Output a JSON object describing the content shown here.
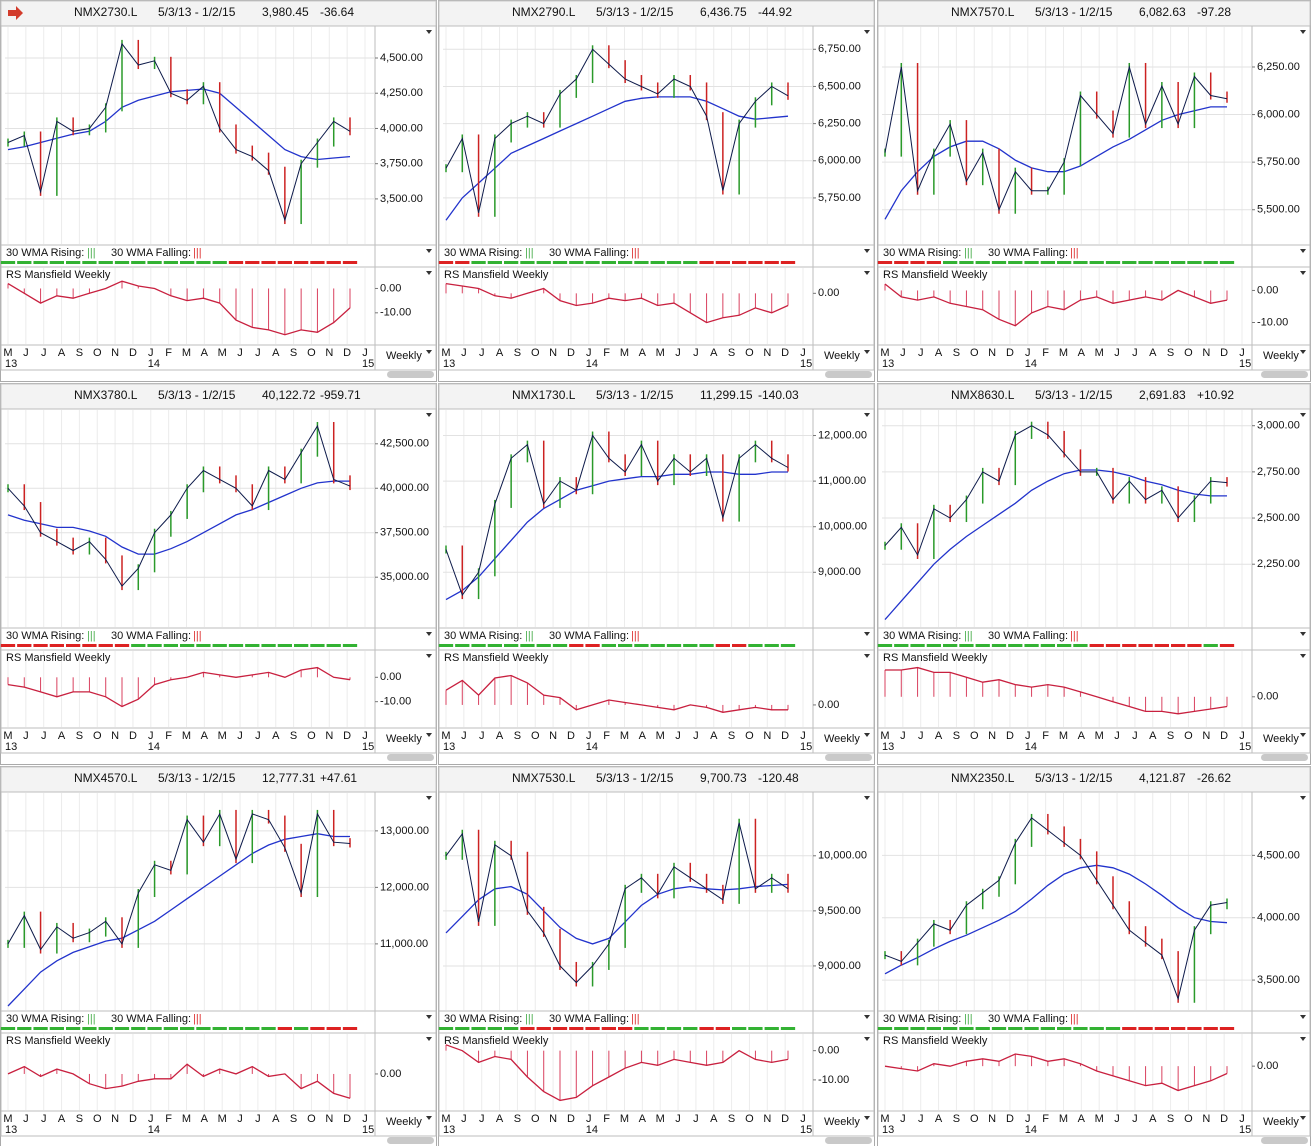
{
  "common": {
    "wma_rising_label": "30 WMA Rising:",
    "wma_falling_label": "30 WMA Falling:",
    "rising_symbol": "|||",
    "falling_symbol": "|||",
    "rs_title": "RS Mansfield Weekly",
    "period": "Weekly",
    "months": [
      "M",
      "J",
      "J",
      "A",
      "S",
      "O",
      "N",
      "D",
      "J",
      "F",
      "M",
      "A",
      "M",
      "J",
      "J",
      "A",
      "S",
      "O",
      "N",
      "D",
      "J"
    ],
    "years": [
      "13",
      "14",
      "15"
    ]
  },
  "chart_data": [
    {
      "type": "line",
      "title": "NMX2730.L",
      "date_range": "5/3/13 - 1/2/15",
      "last": "3,980.45",
      "change": "-36.64",
      "ylim": [
        3180,
        4720
      ],
      "yticks": [
        {
          "value": 3500,
          "label": "3,500.00"
        },
        {
          "value": 3750,
          "label": "3,750.00"
        },
        {
          "value": 4000,
          "label": "4,000.00"
        },
        {
          "value": 4250,
          "label": "4,250.00"
        },
        {
          "value": 4500,
          "label": "4,500.00"
        }
      ],
      "values": [
        3900,
        3950,
        3550,
        4050,
        3980,
        4000,
        4150,
        4600,
        4450,
        4480,
        4250,
        4200,
        4300,
        4000,
        3850,
        3800,
        3700,
        3350,
        3750,
        3900,
        4050,
        3980
      ],
      "ma": [
        3850,
        3870,
        3900,
        3930,
        3960,
        3980,
        4050,
        4150,
        4200,
        4230,
        4260,
        4270,
        4280,
        4250,
        4150,
        4050,
        3950,
        3850,
        3800,
        3780,
        3790,
        3800
      ],
      "trend": [
        1,
        1,
        1,
        1,
        1,
        1,
        1,
        1,
        1,
        1,
        1,
        1,
        1,
        1,
        0,
        0,
        0,
        0,
        0,
        0,
        0,
        0
      ],
      "rs": {
        "ylim": [
          -22.8,
          8.4
        ],
        "yticks": [
          {
            "value": 0,
            "label": "0.00"
          },
          {
            "value": -10,
            "label": "-10.00"
          }
        ],
        "values": [
          2,
          -2,
          -6,
          -3,
          -4,
          -2,
          0,
          3,
          1,
          0,
          -3,
          -5,
          -4,
          -6,
          -13,
          -16,
          -17,
          -19,
          -17,
          -18,
          -14,
          -8
        ]
      }
    },
    {
      "type": "line",
      "title": "NMX2790.L",
      "date_range": "5/3/13 - 1/2/15",
      "last": "6,436.75",
      "change": "-44.92",
      "ylim": [
        5440,
        6900
      ],
      "yticks": [
        {
          "value": 5750,
          "label": "5,750.00"
        },
        {
          "value": 6000,
          "label": "6,000.00"
        },
        {
          "value": 6250,
          "label": "6,250.00"
        },
        {
          "value": 6500,
          "label": "6,500.00"
        },
        {
          "value": 6750,
          "label": "6,750.00"
        }
      ],
      "values": [
        5950,
        6150,
        5650,
        6150,
        6250,
        6300,
        6250,
        6450,
        6550,
        6750,
        6650,
        6550,
        6500,
        6450,
        6550,
        6500,
        6300,
        5800,
        6250,
        6400,
        6500,
        6437
      ],
      "ma": [
        5600,
        5750,
        5850,
        5950,
        6050,
        6100,
        6150,
        6200,
        6250,
        6300,
        6350,
        6400,
        6420,
        6430,
        6430,
        6430,
        6400,
        6350,
        6300,
        6280,
        6290,
        6300
      ],
      "trend": [
        0,
        0,
        1,
        1,
        1,
        1,
        1,
        1,
        1,
        1,
        1,
        1,
        1,
        1,
        1,
        1,
        0,
        0,
        0,
        0,
        0,
        0
      ],
      "rs": {
        "ylim": [
          -20.8,
          10.4
        ],
        "yticks": [
          {
            "value": 0,
            "label": "0.00"
          }
        ],
        "values": [
          4,
          3,
          2,
          -1,
          -2,
          0,
          2,
          -3,
          -5,
          -4,
          -2,
          -3,
          -2,
          -5,
          -4,
          -8,
          -12,
          -10,
          -9,
          -6,
          -8,
          -5
        ]
      }
    },
    {
      "type": "line",
      "title": "NMX7570.L",
      "date_range": "5/3/13 - 1/2/15",
      "last": "6,082.63",
      "change": "-97.28",
      "ylim": [
        5320,
        6460
      ],
      "yticks": [
        {
          "value": 5500,
          "label": "5,500.00"
        },
        {
          "value": 5750,
          "label": "5,750.00"
        },
        {
          "value": 6000,
          "label": "6,000.00"
        },
        {
          "value": 6250,
          "label": "6,250.00"
        }
      ],
      "values": [
        5800,
        6250,
        5600,
        5800,
        5950,
        5650,
        5800,
        5500,
        5700,
        5600,
        5600,
        5750,
        6100,
        6000,
        5900,
        6250,
        5950,
        6150,
        5950,
        6200,
        6100,
        6083
      ],
      "ma": [
        5450,
        5600,
        5700,
        5780,
        5830,
        5860,
        5860,
        5820,
        5760,
        5720,
        5700,
        5700,
        5730,
        5780,
        5830,
        5870,
        5920,
        5970,
        6000,
        6020,
        6040,
        6040
      ],
      "trend": [
        0,
        0,
        0,
        0,
        1,
        1,
        1,
        1,
        1,
        1,
        1,
        1,
        1,
        1,
        1,
        1,
        1,
        1,
        1,
        1,
        1,
        1
      ],
      "rs": {
        "ylim": [
          -16.7,
          7
        ],
        "yticks": [
          {
            "value": 0,
            "label": "0.00"
          },
          {
            "value": -10,
            "label": "-10.00"
          }
        ],
        "values": [
          2,
          -2,
          -3,
          -2,
          -4,
          -5,
          -6,
          -9,
          -11,
          -7,
          -5,
          -6,
          -3,
          -2,
          -4,
          -3,
          -2,
          -3,
          0,
          -2,
          -4,
          -3
        ]
      }
    },
    {
      "type": "line",
      "title": "NMX3780.L",
      "date_range": "5/3/13 - 1/2/15",
      "last": "40,122.72",
      "change": "-959.71",
      "ylim": [
        32200,
        44400
      ],
      "yticks": [
        {
          "value": 35000,
          "label": "35,000.00"
        },
        {
          "value": 37500,
          "label": "37,500.00"
        },
        {
          "value": 40000,
          "label": "40,000.00"
        },
        {
          "value": 42500,
          "label": "42,500.00"
        }
      ],
      "values": [
        40000,
        39000,
        37500,
        37000,
        36500,
        37000,
        36000,
        34500,
        35500,
        37500,
        38500,
        40000,
        41000,
        40500,
        40000,
        39000,
        41000,
        40500,
        42000,
        43500,
        40500,
        40123
      ],
      "ma": [
        38500,
        38200,
        38000,
        37800,
        37800,
        37600,
        37300,
        36700,
        36300,
        36300,
        36600,
        37000,
        37500,
        38000,
        38500,
        38800,
        39200,
        39600,
        40000,
        40300,
        40400,
        40400
      ],
      "trend": [
        0,
        0,
        0,
        0,
        0,
        0,
        0,
        0,
        1,
        1,
        1,
        1,
        1,
        1,
        1,
        1,
        1,
        1,
        1,
        1,
        1,
        1
      ],
      "rs": {
        "ylim": [
          -20.4,
          10.8
        ],
        "yticks": [
          {
            "value": 0,
            "label": "0.00"
          },
          {
            "value": -10,
            "label": "-10.00"
          }
        ],
        "values": [
          -3,
          -4,
          -6,
          -8,
          -6,
          -6,
          -8,
          -12,
          -9,
          -3,
          -1,
          0,
          2,
          1,
          0,
          1,
          2,
          0,
          3,
          4,
          0,
          -1
        ]
      }
    },
    {
      "type": "line",
      "title": "NMX1730.L",
      "date_range": "5/3/13 - 1/2/15",
      "last": "11,299.15",
      "change": "-140.03",
      "ylim": [
        7800,
        12560
      ],
      "yticks": [
        {
          "value": 9000,
          "label": "9,000.00"
        },
        {
          "value": 10000,
          "label": "10,000.00"
        },
        {
          "value": 11000,
          "label": "11,000.00"
        },
        {
          "value": 12000,
          "label": "12,000.00"
        }
      ],
      "values": [
        9500,
        8500,
        9000,
        10500,
        11500,
        11800,
        10500,
        11000,
        10800,
        12000,
        11500,
        11200,
        11800,
        11000,
        11500,
        11200,
        11500,
        10200,
        11500,
        11800,
        11500,
        11299
      ],
      "ma": [
        8400,
        8600,
        8900,
        9300,
        9700,
        10100,
        10400,
        10600,
        10800,
        10900,
        11000,
        11050,
        11100,
        11100,
        11150,
        11150,
        11200,
        11200,
        11150,
        11150,
        11200,
        11200
      ],
      "trend": [
        1,
        1,
        1,
        1,
        1,
        1,
        1,
        1,
        0,
        0,
        1,
        1,
        1,
        1,
        1,
        1,
        1,
        0,
        0,
        1,
        1,
        1
      ],
      "rs": {
        "ylim": [
          -9,
          22
        ],
        "yticks": [
          {
            "value": 0,
            "label": "0.00"
          }
        ],
        "values": [
          6,
          10,
          4,
          11,
          12,
          9,
          4,
          3,
          -2,
          0,
          2,
          1,
          0,
          -1,
          -2,
          0,
          -1,
          -3,
          -2,
          -1,
          -2,
          -2
        ]
      }
    },
    {
      "type": "line",
      "title": "NMX8630.L",
      "date_range": "5/3/13 - 1/2/15",
      "last": "2,691.83",
      "change": "+10.92",
      "ylim": [
        1910,
        3085
      ],
      "yticks": [
        {
          "value": 2250,
          "label": "2,250.00"
        },
        {
          "value": 2500,
          "label": "2,500.00"
        },
        {
          "value": 2750,
          "label": "2,750.00"
        },
        {
          "value": 3000,
          "label": "3,000.00"
        }
      ],
      "values": [
        2350,
        2450,
        2300,
        2550,
        2500,
        2600,
        2750,
        2700,
        2950,
        3000,
        2950,
        2850,
        2750,
        2750,
        2600,
        2700,
        2600,
        2650,
        2500,
        2600,
        2700,
        2692
      ],
      "ma": [
        1950,
        2050,
        2150,
        2250,
        2330,
        2400,
        2460,
        2520,
        2580,
        2650,
        2700,
        2740,
        2760,
        2760,
        2750,
        2730,
        2700,
        2680,
        2650,
        2630,
        2620,
        2620
      ],
      "trend": [
        1,
        1,
        1,
        1,
        1,
        1,
        1,
        1,
        1,
        1,
        1,
        1,
        1,
        0,
        0,
        0,
        0,
        0,
        0,
        0,
        1,
        0
      ],
      "rs": {
        "ylim": [
          -12.4,
          18.8
        ],
        "yticks": [
          {
            "value": 0,
            "label": "0.00"
          }
        ],
        "values": [
          11,
          11,
          12,
          10,
          10,
          8,
          6,
          7,
          5,
          4,
          5,
          4,
          2,
          0,
          -2,
          -4,
          -6,
          -6,
          -7,
          -6,
          -5,
          -4
        ]
      }
    },
    {
      "type": "line",
      "title": "NMX4570.L",
      "date_range": "5/3/13 - 1/2/15",
      "last": "12,777.31",
      "change": "+47.61",
      "ylim": [
        9830,
        13670
      ],
      "yticks": [
        {
          "value": 11000,
          "label": "11,000.00"
        },
        {
          "value": 12000,
          "label": "12,000.00"
        },
        {
          "value": 13000,
          "label": "13,000.00"
        }
      ],
      "values": [
        11000,
        11500,
        10900,
        11300,
        11100,
        11200,
        11400,
        11000,
        11900,
        12400,
        12300,
        13200,
        12800,
        13300,
        12500,
        13300,
        13200,
        12700,
        11900,
        13300,
        12800,
        12777
      ],
      "ma": [
        9900,
        10200,
        10500,
        10700,
        10850,
        10950,
        11050,
        11100,
        11250,
        11400,
        11600,
        11800,
        12000,
        12200,
        12400,
        12600,
        12750,
        12850,
        12900,
        12950,
        12900,
        12900
      ],
      "trend": [
        1,
        1,
        1,
        1,
        1,
        1,
        1,
        1,
        1,
        1,
        1,
        1,
        1,
        1,
        1,
        1,
        1,
        0,
        1,
        0,
        0,
        0
      ],
      "rs": {
        "ylim": [
          -14.8,
          16.4
        ],
        "yticks": [
          {
            "value": 0,
            "label": "0.00"
          }
        ],
        "values": [
          0,
          3,
          -1,
          2,
          0,
          -4,
          -6,
          -5,
          -3,
          -2,
          -2,
          4,
          -1,
          2,
          0,
          3,
          -1,
          0,
          -6,
          -3,
          -8,
          -10
        ]
      }
    },
    {
      "type": "line",
      "title": "NMX7530.L",
      "date_range": "5/3/13 - 1/2/15",
      "last": "9,700.73",
      "change": "-120.48",
      "ylim": [
        8600,
        10570
      ],
      "yticks": [
        {
          "value": 9000,
          "label": "9,000.00"
        },
        {
          "value": 9500,
          "label": "9,500.00"
        },
        {
          "value": 10000,
          "label": "10,000.00"
        }
      ],
      "values": [
        10000,
        10200,
        9400,
        10100,
        10000,
        9500,
        9300,
        9000,
        8850,
        9000,
        9200,
        9700,
        9800,
        9650,
        9900,
        9800,
        9700,
        9600,
        10300,
        9700,
        9800,
        9701
      ],
      "ma": [
        9300,
        9450,
        9600,
        9700,
        9720,
        9650,
        9500,
        9350,
        9250,
        9200,
        9250,
        9400,
        9550,
        9650,
        9700,
        9720,
        9700,
        9690,
        9700,
        9720,
        9730,
        9740
      ],
      "trend": [
        1,
        1,
        1,
        1,
        1,
        0,
        0,
        0,
        0,
        0,
        0,
        0,
        1,
        1,
        1,
        1,
        0,
        0,
        1,
        1,
        1,
        1
      ],
      "rs": {
        "ylim": [
          -20.3,
          5.7
        ],
        "yticks": [
          {
            "value": 0,
            "label": "0.00"
          },
          {
            "value": -10,
            "label": "-10.00"
          }
        ],
        "values": [
          2,
          0,
          -4,
          -2,
          -3,
          -9,
          -14,
          -17,
          -16,
          -12,
          -9,
          -6,
          -4,
          -5,
          -3,
          -4,
          -5,
          -4,
          0,
          -3,
          -4,
          -3
        ]
      }
    },
    {
      "type": "line",
      "title": "NMX2350.L",
      "date_range": "5/3/13 - 1/2/15",
      "last": "4,121.87",
      "change": "-26.62",
      "ylim": [
        3260,
        5000
      ],
      "yticks": [
        {
          "value": 3500,
          "label": "3,500.00"
        },
        {
          "value": 4000,
          "label": "4,000.00"
        },
        {
          "value": 4500,
          "label": "4,500.00"
        }
      ],
      "values": [
        3700,
        3650,
        3800,
        3950,
        3900,
        4100,
        4200,
        4300,
        4600,
        4800,
        4700,
        4600,
        4500,
        4300,
        4100,
        3900,
        3800,
        3700,
        3350,
        3900,
        4100,
        4122
      ],
      "ma": [
        3550,
        3620,
        3680,
        3750,
        3810,
        3860,
        3920,
        3980,
        4050,
        4150,
        4260,
        4350,
        4400,
        4420,
        4400,
        4350,
        4270,
        4180,
        4080,
        4000,
        3970,
        3960
      ],
      "trend": [
        1,
        1,
        1,
        1,
        1,
        1,
        1,
        1,
        1,
        1,
        1,
        1,
        1,
        1,
        1,
        0,
        0,
        0,
        0,
        0,
        0,
        0
      ],
      "rs": {
        "ylim": [
          -18,
          13.2
        ],
        "yticks": [
          {
            "value": 0,
            "label": "0.00"
          }
        ],
        "values": [
          0,
          -1,
          -2,
          1,
          0,
          2,
          3,
          2,
          5,
          4,
          2,
          3,
          1,
          -2,
          -4,
          -6,
          -8,
          -7,
          -10,
          -8,
          -6,
          -3
        ]
      }
    }
  ]
}
